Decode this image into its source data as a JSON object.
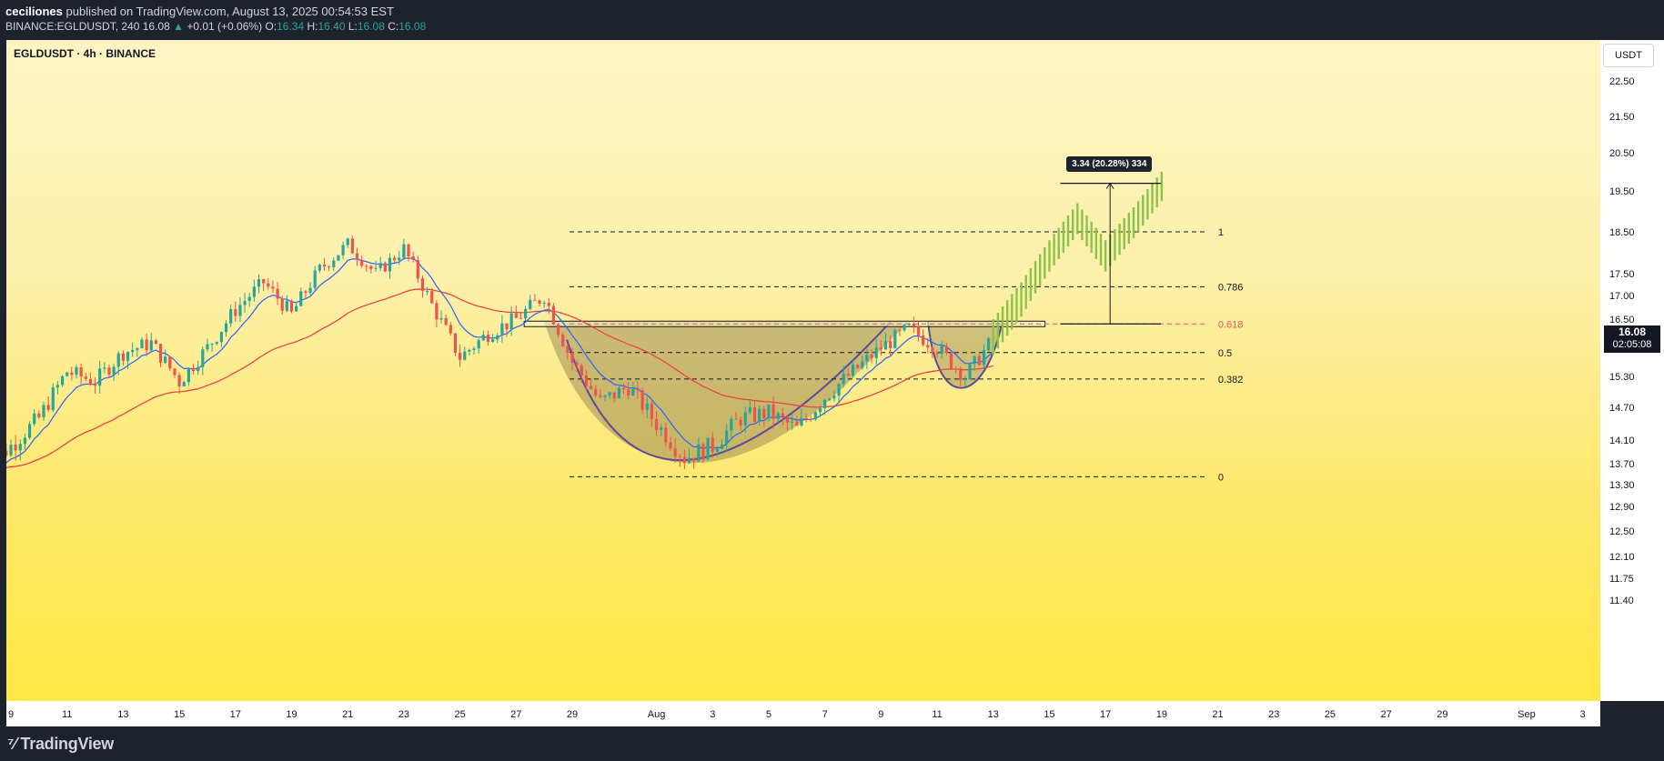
{
  "header": {
    "author": "ceciliones",
    "published_text": "published on TradingView.com, August 13, 2025 00:54:53 EST",
    "symbol_full": "BINANCE:EGLDUSDT, 240",
    "last": "16.08",
    "change": "+0.01 (+0.06%)",
    "open_label": "O:",
    "open": "16.34",
    "high_label": "H:",
    "high": "16.40",
    "low_label": "L:",
    "low": "16.08",
    "close_label": "C:",
    "close": "16.08"
  },
  "chart_title": "EGLDUSDT · 4h · BINANCE",
  "price_axis": {
    "currency": "USDT",
    "current_price": "16.08",
    "countdown": "02:05:08"
  },
  "footer": {
    "logo_text": "TradingView"
  },
  "measure_label": "3.34 (20.28%) 334",
  "colors": {
    "bull": "#26a69a",
    "bear": "#ef5350",
    "projection": "#8bc34a",
    "ema_fast": "#2962ff",
    "ema_slow": "#f23645",
    "cup": "#5c4a9e"
  },
  "chart_data": {
    "type": "candlestick",
    "x_tick_labels": [
      "9",
      "11",
      "13",
      "15",
      "17",
      "19",
      "21",
      "23",
      "25",
      "27",
      "29",
      "Aug",
      "3",
      "5",
      "7",
      "9",
      "11",
      "13",
      "15",
      "17",
      "19",
      "21",
      "23",
      "25",
      "27",
      "29",
      "Sep",
      "3"
    ],
    "y_tick_labels": [
      "22.50",
      "21.50",
      "20.50",
      "19.50",
      "18.50",
      "17.50",
      "17.00",
      "16.50",
      "15.30",
      "14.70",
      "14.10",
      "13.70",
      "13.30",
      "12.90",
      "12.50",
      "12.10",
      "11.75",
      "11.40"
    ],
    "price_path": [
      [
        "2025-07-08",
        13.6
      ],
      [
        "2025-07-09",
        14.0
      ],
      [
        "2025-07-10",
        14.5
      ],
      [
        "2025-07-11",
        15.4
      ],
      [
        "2025-07-12",
        15.2
      ],
      [
        "2025-07-13",
        15.8
      ],
      [
        "2025-07-14",
        16.0
      ],
      [
        "2025-07-15",
        15.2
      ],
      [
        "2025-07-16",
        15.9
      ],
      [
        "2025-07-17",
        16.7
      ],
      [
        "2025-07-18",
        17.3
      ],
      [
        "2025-07-19",
        16.6
      ],
      [
        "2025-07-20",
        17.6
      ],
      [
        "2025-07-21",
        18.2
      ],
      [
        "2025-07-22",
        17.5
      ],
      [
        "2025-07-23",
        18.1
      ],
      [
        "2025-07-24",
        16.8
      ],
      [
        "2025-07-25",
        15.7
      ],
      [
        "2025-07-26",
        16.2
      ],
      [
        "2025-07-27",
        16.5
      ],
      [
        "2025-07-28",
        17.0
      ],
      [
        "2025-07-29",
        15.6
      ],
      [
        "2025-07-30",
        14.8
      ],
      [
        "2025-07-31",
        15.1
      ],
      [
        "2025-08-01",
        14.4
      ],
      [
        "2025-08-02",
        13.8
      ],
      [
        "2025-08-03",
        14.0
      ],
      [
        "2025-08-04",
        14.5
      ],
      [
        "2025-08-05",
        14.6
      ],
      [
        "2025-08-06",
        14.3
      ],
      [
        "2025-08-07",
        14.9
      ],
      [
        "2025-08-08",
        15.4
      ],
      [
        "2025-08-09",
        15.9
      ],
      [
        "2025-08-10",
        16.3
      ],
      [
        "2025-08-11",
        15.9
      ],
      [
        "2025-08-12",
        15.3
      ],
      [
        "2025-08-13",
        16.08
      ]
    ],
    "projection_path": [
      [
        "2025-08-13",
        16.1
      ],
      [
        "2025-08-14",
        16.9
      ],
      [
        "2025-08-15",
        17.9
      ],
      [
        "2025-08-16",
        18.8
      ],
      [
        "2025-08-17",
        17.9
      ],
      [
        "2025-08-18",
        18.7
      ],
      [
        "2025-08-19",
        19.6
      ]
    ],
    "fib_levels": [
      {
        "label": "1",
        "price": 18.5
      },
      {
        "label": "0.786",
        "price": 17.2
      },
      {
        "label": "0.618",
        "price": 16.4
      },
      {
        "label": "0.5",
        "price": 15.8
      },
      {
        "label": "0.382",
        "price": 15.25
      },
      {
        "label": "0",
        "price": 13.45
      }
    ],
    "resistance_price": 16.4,
    "measure_from": 16.4,
    "measure_to": 19.7
  }
}
